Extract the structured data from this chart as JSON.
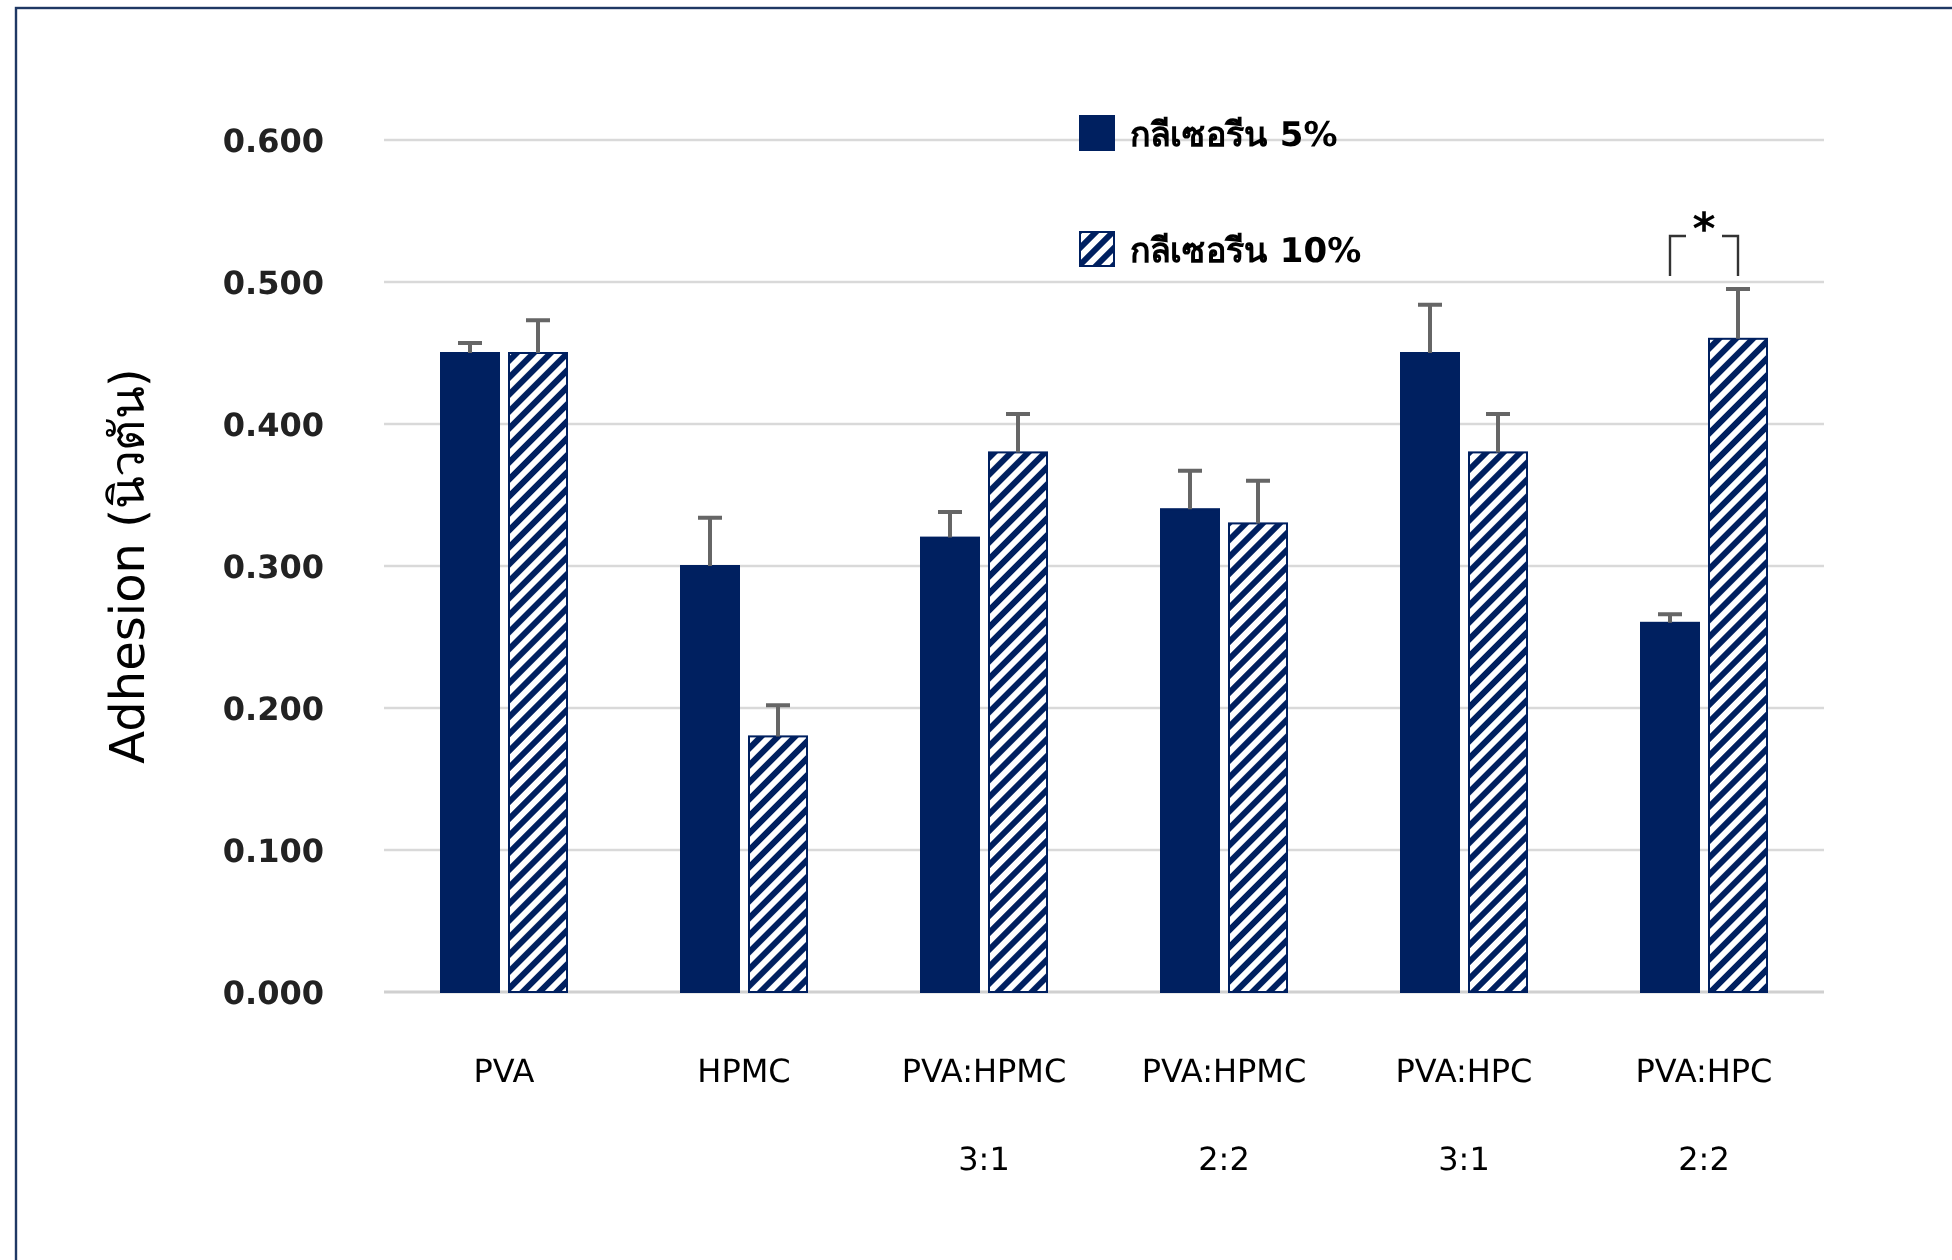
{
  "chart_data": {
    "type": "bar",
    "ylabel": "Adhesion (นิวตัน)",
    "categories": [
      "PVA",
      "HPMC",
      "PVA:HPMC\n3:1",
      "PVA:HPMC\n2:2",
      "PVA:HPC\n3:1",
      "PVA:HPC\n2:2"
    ],
    "series": [
      {
        "name": "กลีเซอรีน 5%",
        "color": "#002060",
        "values": [
          0.45,
          0.3,
          0.32,
          0.34,
          0.45,
          0.26
        ],
        "errors": [
          [
            0.45,
            0.457
          ],
          [
            0.3,
            0.334
          ],
          [
            0.32,
            0.338
          ],
          [
            0.34,
            0.367
          ],
          [
            0.45,
            0.484
          ],
          [
            0.26,
            0.266
          ]
        ]
      },
      {
        "name": "กลีเซอรีน 10%",
        "color": "#002060",
        "values": [
          0.45,
          0.18,
          0.38,
          0.33,
          0.38,
          0.46
        ],
        "errors": [
          [
            0.45,
            0.473
          ],
          [
            0.18,
            0.202
          ],
          [
            0.38,
            0.407
          ],
          [
            0.33,
            0.36
          ],
          [
            0.38,
            0.407
          ],
          [
            0.46,
            0.495
          ]
        ]
      }
    ],
    "ylim": [
      0,
      0.6
    ],
    "yticks": [
      {
        "value": 0,
        "label": "0.000"
      },
      {
        "value": 0.1,
        "label": "0.100"
      },
      {
        "value": 0.2,
        "label": "0.200"
      },
      {
        "value": 0.3,
        "label": "0.300"
      },
      {
        "value": 0.4,
        "label": "0.400"
      },
      {
        "value": 0.5,
        "label": "0.500"
      },
      {
        "value": 0.6,
        "label": "0.600"
      }
    ],
    "grid": "y",
    "legend": "top right",
    "annotations": [
      "*"
    ]
  }
}
